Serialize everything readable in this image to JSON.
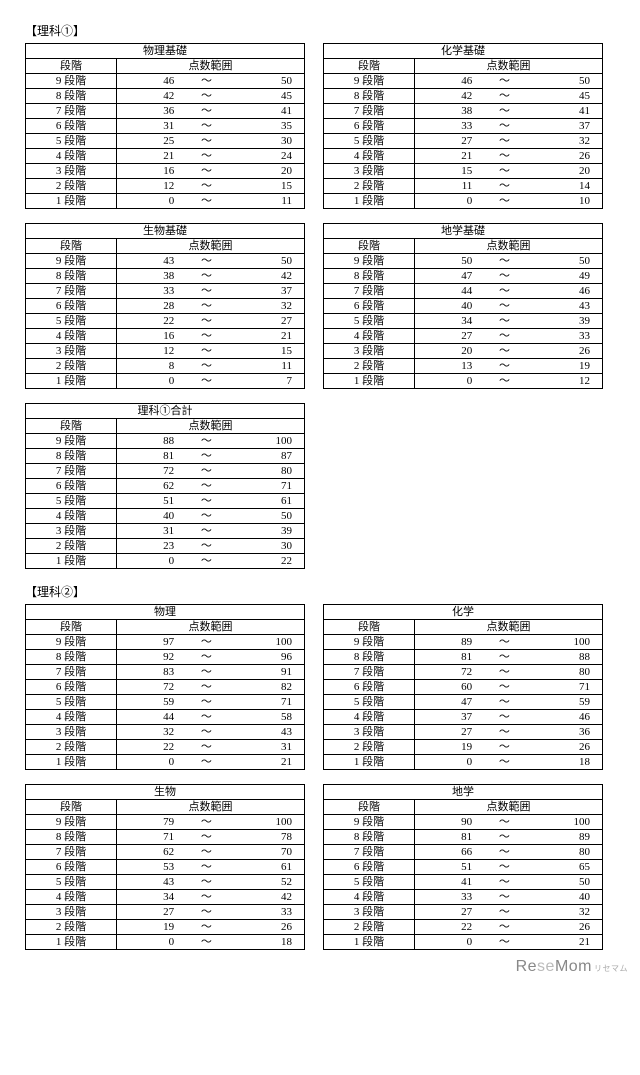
{
  "sections": [
    {
      "label": "【理科①】",
      "tableRows": [
        [
          {
            "title": "物理基礎",
            "rows": [
              [
                "9 段階",
                46,
                50
              ],
              [
                "8 段階",
                42,
                45
              ],
              [
                "7 段階",
                36,
                41
              ],
              [
                "6 段階",
                31,
                35
              ],
              [
                "5 段階",
                25,
                30
              ],
              [
                "4 段階",
                21,
                24
              ],
              [
                "3 段階",
                16,
                20
              ],
              [
                "2 段階",
                12,
                15
              ],
              [
                "1 段階",
                0,
                11
              ]
            ]
          },
          {
            "title": "化学基礎",
            "rows": [
              [
                "9 段階",
                46,
                50
              ],
              [
                "8 段階",
                42,
                45
              ],
              [
                "7 段階",
                38,
                41
              ],
              [
                "6 段階",
                33,
                37
              ],
              [
                "5 段階",
                27,
                32
              ],
              [
                "4 段階",
                21,
                26
              ],
              [
                "3 段階",
                15,
                20
              ],
              [
                "2 段階",
                11,
                14
              ],
              [
                "1 段階",
                0,
                10
              ]
            ]
          }
        ],
        [
          {
            "title": "生物基礎",
            "rows": [
              [
                "9 段階",
                43,
                50
              ],
              [
                "8 段階",
                38,
                42
              ],
              [
                "7 段階",
                33,
                37
              ],
              [
                "6 段階",
                28,
                32
              ],
              [
                "5 段階",
                22,
                27
              ],
              [
                "4 段階",
                16,
                21
              ],
              [
                "3 段階",
                12,
                15
              ],
              [
                "2 段階",
                8,
                11
              ],
              [
                "1 段階",
                0,
                7
              ]
            ]
          },
          {
            "title": "地学基礎",
            "rows": [
              [
                "9 段階",
                50,
                50
              ],
              [
                "8 段階",
                47,
                49
              ],
              [
                "7 段階",
                44,
                46
              ],
              [
                "6 段階",
                40,
                43
              ],
              [
                "5 段階",
                34,
                39
              ],
              [
                "4 段階",
                27,
                33
              ],
              [
                "3 段階",
                20,
                26
              ],
              [
                "2 段階",
                13,
                19
              ],
              [
                "1 段階",
                0,
                12
              ]
            ]
          }
        ],
        [
          {
            "title": "理科①合計",
            "rows": [
              [
                "9 段階",
                88,
                100
              ],
              [
                "8 段階",
                81,
                87
              ],
              [
                "7 段階",
                72,
                80
              ],
              [
                "6 段階",
                62,
                71
              ],
              [
                "5 段階",
                51,
                61
              ],
              [
                "4 段階",
                40,
                50
              ],
              [
                "3 段階",
                31,
                39
              ],
              [
                "2 段階",
                23,
                30
              ],
              [
                "1 段階",
                0,
                22
              ]
            ]
          }
        ]
      ]
    },
    {
      "label": "【理科②】",
      "tableRows": [
        [
          {
            "title": "物理",
            "rows": [
              [
                "9 段階",
                97,
                100
              ],
              [
                "8 段階",
                92,
                96
              ],
              [
                "7 段階",
                83,
                91
              ],
              [
                "6 段階",
                72,
                82
              ],
              [
                "5 段階",
                59,
                71
              ],
              [
                "4 段階",
                44,
                58
              ],
              [
                "3 段階",
                32,
                43
              ],
              [
                "2 段階",
                22,
                31
              ],
              [
                "1 段階",
                0,
                21
              ]
            ]
          },
          {
            "title": "化学",
            "rows": [
              [
                "9 段階",
                89,
                100
              ],
              [
                "8 段階",
                81,
                88
              ],
              [
                "7 段階",
                72,
                80
              ],
              [
                "6 段階",
                60,
                71
              ],
              [
                "5 段階",
                47,
                59
              ],
              [
                "4 段階",
                37,
                46
              ],
              [
                "3 段階",
                27,
                36
              ],
              [
                "2 段階",
                19,
                26
              ],
              [
                "1 段階",
                0,
                18
              ]
            ]
          }
        ],
        [
          {
            "title": "生物",
            "rows": [
              [
                "9 段階",
                79,
                100
              ],
              [
                "8 段階",
                71,
                78
              ],
              [
                "7 段階",
                62,
                70
              ],
              [
                "6 段階",
                53,
                61
              ],
              [
                "5 段階",
                43,
                52
              ],
              [
                "4 段階",
                34,
                42
              ],
              [
                "3 段階",
                27,
                33
              ],
              [
                "2 段階",
                19,
                26
              ],
              [
                "1 段階",
                0,
                18
              ]
            ]
          },
          {
            "title": "地学",
            "rows": [
              [
                "9 段階",
                90,
                100
              ],
              [
                "8 段階",
                81,
                89
              ],
              [
                "7 段階",
                66,
                80
              ],
              [
                "6 段階",
                51,
                65
              ],
              [
                "5 段階",
                41,
                50
              ],
              [
                "4 段階",
                33,
                40
              ],
              [
                "3 段階",
                27,
                32
              ],
              [
                "2 段階",
                22,
                26
              ],
              [
                "1 段階",
                0,
                21
              ]
            ]
          }
        ]
      ]
    }
  ],
  "headers": {
    "level": "段階",
    "range": "点数範囲",
    "tilde": "～"
  },
  "watermark": {
    "text1": "Re",
    "text2": "se",
    "text3": "Mom",
    "sub": "リセマム"
  }
}
